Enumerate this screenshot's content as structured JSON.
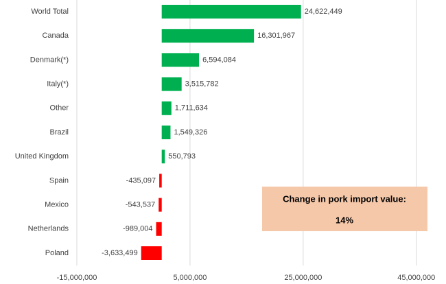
{
  "chart_data": {
    "type": "hbar",
    "categories": [
      "World Total",
      "Canada",
      "Denmark(*)",
      "Italy(*)",
      "Other",
      "Brazil",
      "United Kingdom",
      "Spain",
      "Mexico",
      "Netherlands",
      "Poland"
    ],
    "values": [
      24622449,
      16301967,
      6594084,
      3515782,
      1711634,
      1549326,
      550793,
      -435097,
      -543537,
      -989004,
      -3633499
    ],
    "value_labels": [
      "24,622,449",
      "16,301,967",
      "6,594,084",
      "3,515,782",
      "1,711,634",
      "1,549,326",
      "550,793",
      "-435,097",
      "-543,537",
      "-989,004",
      "-3,633,499"
    ],
    "color_positive": "#00b050",
    "color_negative": "#ff0000",
    "xlim": [
      -15000000,
      50000000
    ],
    "xticks": [
      {
        "value": -15000000,
        "label": "-15,000,000"
      },
      {
        "value": 5000000,
        "label": "5,000,000"
      },
      {
        "value": 25000000,
        "label": "25,000,000"
      },
      {
        "value": 45000000,
        "label": "45,000,000"
      }
    ],
    "grid": true,
    "annotation": {
      "title": "Change in pork import value:",
      "text": "14%"
    }
  }
}
